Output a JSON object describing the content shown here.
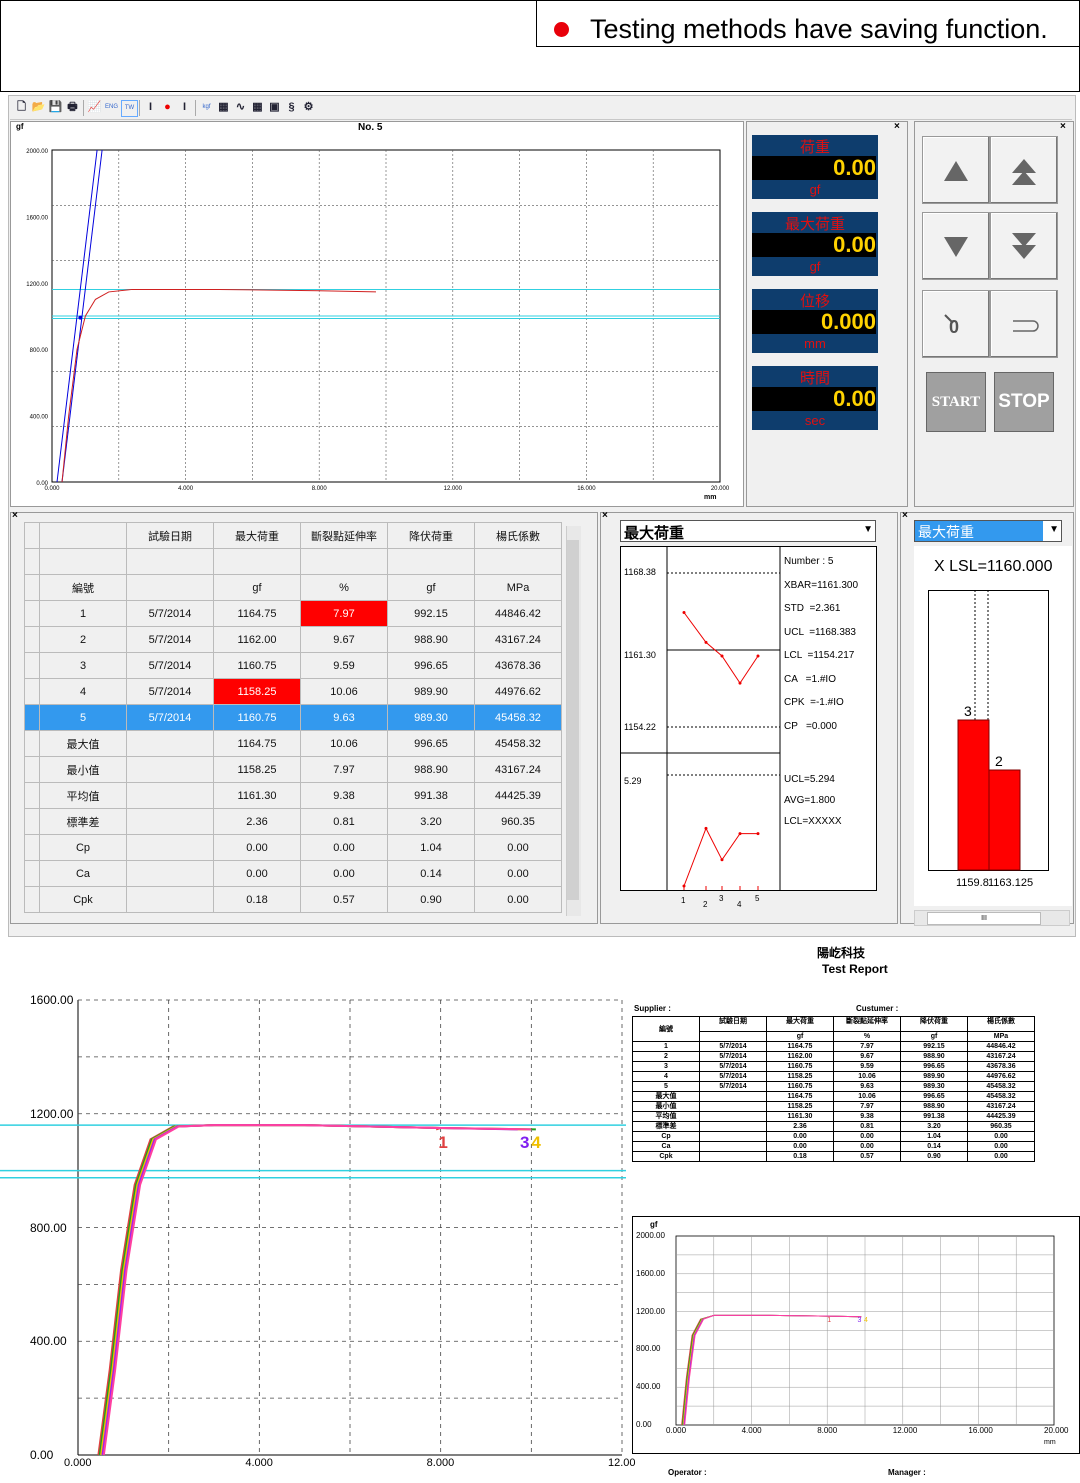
{
  "banner": {
    "text": "Testing methods have saving function.",
    "dot_color": "#e8000a"
  },
  "toolbar": {
    "icons": [
      "new-icon",
      "open-icon",
      "save-icon",
      "print-icon",
      "chart-icon",
      "eng-icon",
      "tw-icon",
      "specimen-icon",
      "stop-icon",
      "grip-icon",
      "unit-icon",
      "display-icon",
      "curve-icon",
      "table-icon",
      "report-icon",
      "spc-icon",
      "settings-icon"
    ],
    "eng_label": "ENG",
    "tw_label": "TW",
    "unit_label": "kgf"
  },
  "main_chart": {
    "title": "No. 5",
    "y_unit": "gf",
    "x_unit": "mm",
    "y_ticks": [
      "2000.00",
      "1600.00",
      "1200.00",
      "800.00",
      "400.00",
      "0.00"
    ],
    "x_ticks": [
      "0.000",
      "4.000",
      "8.000",
      "12.000",
      "16.000",
      "20.000"
    ]
  },
  "gauges": [
    {
      "label": "荷重",
      "value": "0.00",
      "unit": "gf"
    },
    {
      "label": "最大荷重",
      "value": "0.00",
      "unit": "gf"
    },
    {
      "label": "位移",
      "value": "0.000",
      "unit": "mm"
    },
    {
      "label": "時間",
      "value": "0.00",
      "unit": "sec"
    }
  ],
  "controls": {
    "start_label": "START",
    "stop_label": "STOP"
  },
  "results_table": {
    "headers": [
      "試驗日期",
      "最大荷重",
      "斷裂點延伸率",
      "降伏荷重",
      "楊氏係數"
    ],
    "id_label": "編號",
    "units": [
      "",
      "gf",
      "%",
      "gf",
      "MPa"
    ],
    "rows": [
      {
        "id": "1",
        "cells": [
          "5/7/2014",
          "1164.75",
          "7.97",
          "992.15",
          "44846.42"
        ]
      },
      {
        "id": "2",
        "cells": [
          "5/7/2014",
          "1162.00",
          "9.67",
          "988.90",
          "43167.24"
        ]
      },
      {
        "id": "3",
        "cells": [
          "5/7/2014",
          "1160.75",
          "9.59",
          "996.65",
          "43678.36"
        ]
      },
      {
        "id": "4",
        "cells": [
          "5/7/2014",
          "1158.25",
          "10.06",
          "989.90",
          "44976.62"
        ]
      },
      {
        "id": "5",
        "cells": [
          "5/7/2014",
          "1160.75",
          "9.63",
          "989.30",
          "45458.32"
        ]
      }
    ],
    "stats": [
      {
        "id": "最大值",
        "cells": [
          "",
          "1164.75",
          "10.06",
          "996.65",
          "45458.32"
        ]
      },
      {
        "id": "最小值",
        "cells": [
          "",
          "1158.25",
          "7.97",
          "988.90",
          "43167.24"
        ]
      },
      {
        "id": "平均值",
        "cells": [
          "",
          "1161.30",
          "9.38",
          "991.38",
          "44425.39"
        ]
      },
      {
        "id": "標準差",
        "cells": [
          "",
          "2.36",
          "0.81",
          "3.20",
          "960.35"
        ]
      },
      {
        "id": "Cp",
        "cells": [
          "",
          "0.00",
          "0.00",
          "1.04",
          "0.00"
        ]
      },
      {
        "id": "Ca",
        "cells": [
          "",
          "0.00",
          "0.00",
          "0.14",
          "0.00"
        ]
      },
      {
        "id": "Cpk",
        "cells": [
          "",
          "0.18",
          "0.57",
          "0.90",
          "0.00"
        ]
      }
    ]
  },
  "spc_panel": {
    "dropdown_value": "最大荷重",
    "xbar_ticks": [
      "1168.38",
      "1161.30",
      "1154.22"
    ],
    "r_ticks": [
      "5.29"
    ],
    "x_labels": [
      "1",
      "2",
      "3",
      "4",
      "5"
    ],
    "stats_lines": [
      "Number : 5",
      "XBAR=1161.300",
      "STD  =2.361",
      "UCL  =1168.383",
      "LCL  =1154.217",
      "CA   =1.#IO",
      "CPK  =-1.#IO",
      "CP   =0.000"
    ],
    "r_lines": [
      "UCL=5.294",
      "AVG=1.800",
      "LCL=XXXXX"
    ]
  },
  "histogram_panel": {
    "dropdown_value": "最大荷重",
    "lsl_text": "X LSL=1160.000",
    "bar_labels": [
      "3",
      "2"
    ],
    "axis_labels": [
      "1159.8",
      "1163.125"
    ],
    "scroll_label": "III"
  },
  "overlay_chart": {
    "y_ticks": [
      "1600.00",
      "1200.00",
      "800.00",
      "400.00",
      "0.00"
    ],
    "x_ticks": [
      "0.000",
      "4.000",
      "8.000",
      "12.00"
    ],
    "specimen_labels": [
      "1",
      "3",
      "4"
    ]
  },
  "report": {
    "company": "陽屹科技",
    "title": "Test Report",
    "supplier_label": "Supplier :",
    "customer_label": "Custumer :",
    "operator_label": "Operator :",
    "manager_label": "Manager :",
    "chart": {
      "y_unit": "gf",
      "x_unit": "mm",
      "y_ticks": [
        "2000.00",
        "1600.00",
        "1200.00",
        "800.00",
        "400.00",
        "0.00"
      ],
      "x_ticks": [
        "0.000",
        "4.000",
        "8.000",
        "12.000",
        "16.000",
        "20.000"
      ],
      "specimen_labels": [
        "1",
        "3",
        "4"
      ]
    }
  }
}
